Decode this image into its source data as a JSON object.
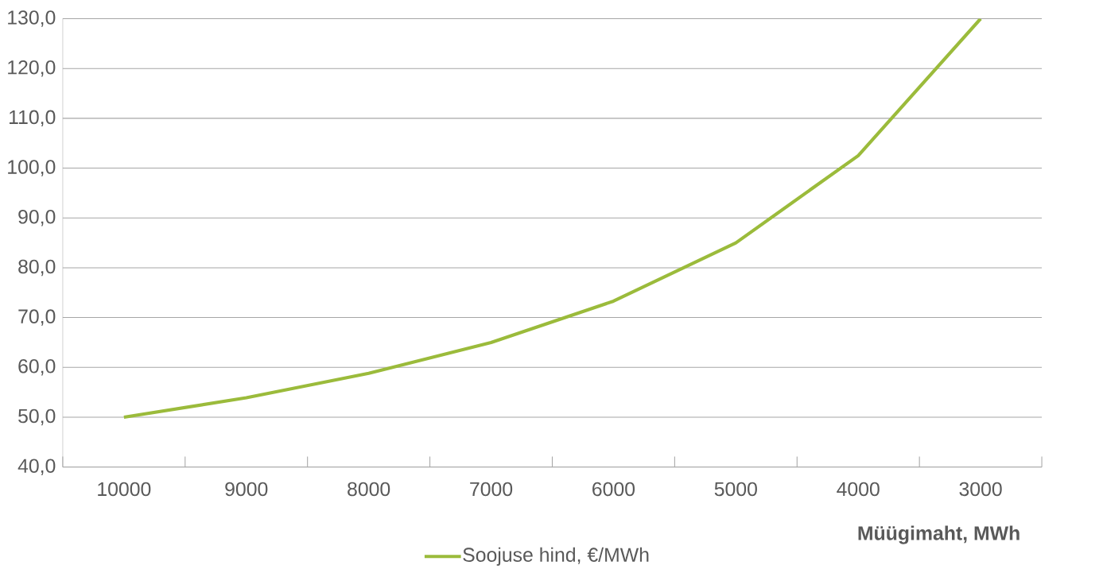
{
  "chart_data": {
    "type": "line",
    "xlabel": "Müügimaht, MWh",
    "categories": [
      "10000",
      "9000",
      "8000",
      "7000",
      "6000",
      "5000",
      "4000",
      "3000"
    ],
    "series": [
      {
        "name": "Soojuse hind, €/MWh",
        "color": "#9bbb3b",
        "values": [
          50.0,
          53.9,
          58.8,
          65.0,
          73.3,
          85.0,
          102.5,
          130.0
        ]
      }
    ],
    "ylim": [
      40,
      130
    ],
    "yticks": [
      {
        "value": 40,
        "label": "40,0"
      },
      {
        "value": 50,
        "label": "50,0"
      },
      {
        "value": 60,
        "label": "60,0"
      },
      {
        "value": 70,
        "label": "70,0"
      },
      {
        "value": 80,
        "label": "80,0"
      },
      {
        "value": 90,
        "label": "90,0"
      },
      {
        "value": 100,
        "label": "100,0"
      },
      {
        "value": 110,
        "label": "110,0"
      },
      {
        "value": 120,
        "label": "120,0"
      },
      {
        "value": 130,
        "label": "130,0"
      }
    ],
    "grid": "y",
    "legend": "bottom",
    "marker": "none",
    "line_style": "solid"
  }
}
